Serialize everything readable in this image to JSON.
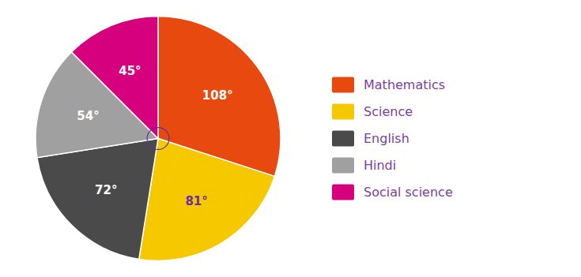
{
  "chart_data": {
    "type": "pie",
    "categories": [
      "Mathematics",
      "Science",
      "English",
      "Hindi",
      "Social science"
    ],
    "values": [
      108,
      81,
      72,
      54,
      45
    ],
    "value_labels": [
      "108°",
      "81°",
      "72°",
      "54°",
      "45°"
    ],
    "colors": [
      "#E8490F",
      "#F5C800",
      "#4A4A4A",
      "#A0A0A0",
      "#D6007F"
    ],
    "data_labels": true,
    "legend": "right"
  }
}
